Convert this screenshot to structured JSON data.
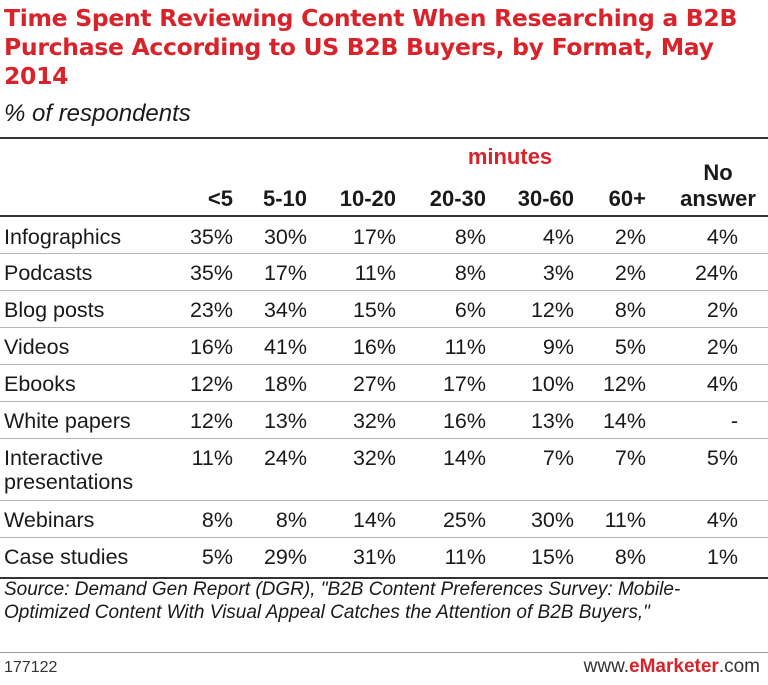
{
  "chart_data": {
    "type": "table",
    "title": "Time Spent Reviewing Content When Researching a B2B Purchase According to US B2B Buyers, by Format, May 2014",
    "subtitle": "% of respondents",
    "group_header": "minutes",
    "columns": [
      "<5",
      "5-10",
      "10-20",
      "20-30",
      "30-60",
      "60+",
      "No answer"
    ],
    "rows": [
      {
        "label": "Infographics",
        "values": [
          "35%",
          "30%",
          "17%",
          "8%",
          "4%",
          "2%",
          "4%"
        ]
      },
      {
        "label": "Podcasts",
        "values": [
          "35%",
          "17%",
          "11%",
          "8%",
          "3%",
          "2%",
          "24%"
        ]
      },
      {
        "label": "Blog posts",
        "values": [
          "23%",
          "34%",
          "15%",
          "6%",
          "12%",
          "8%",
          "2%"
        ]
      },
      {
        "label": "Videos",
        "values": [
          "16%",
          "41%",
          "16%",
          "11%",
          "9%",
          "5%",
          "2%"
        ]
      },
      {
        "label": "Ebooks",
        "values": [
          "12%",
          "18%",
          "27%",
          "17%",
          "10%",
          "12%",
          "4%"
        ]
      },
      {
        "label": "White papers",
        "values": [
          "12%",
          "13%",
          "32%",
          "16%",
          "13%",
          "14%",
          "-"
        ]
      },
      {
        "label": "Interactive presentations",
        "values": [
          "11%",
          "24%",
          "32%",
          "14%",
          "7%",
          "7%",
          "5%"
        ]
      },
      {
        "label": "Webinars",
        "values": [
          "8%",
          "8%",
          "14%",
          "25%",
          "30%",
          "11%",
          "4%"
        ]
      },
      {
        "label": "Case studies",
        "values": [
          "5%",
          "29%",
          "31%",
          "11%",
          "15%",
          "8%",
          "1%"
        ]
      }
    ],
    "source": "Source: Demand Gen Report (DGR), \"B2B Content Preferences Survey: Mobile-Optimized Content With Visual Appeal Catches the Attention of B2B Buyers,\"",
    "footer_id": "177122",
    "brand_prefix": "www.",
    "brand_name": "eMarketer",
    "brand_suffix": ".com"
  },
  "colors": {
    "accent": "#d8232a",
    "text": "#1a1a1a",
    "rule": "#333333"
  }
}
